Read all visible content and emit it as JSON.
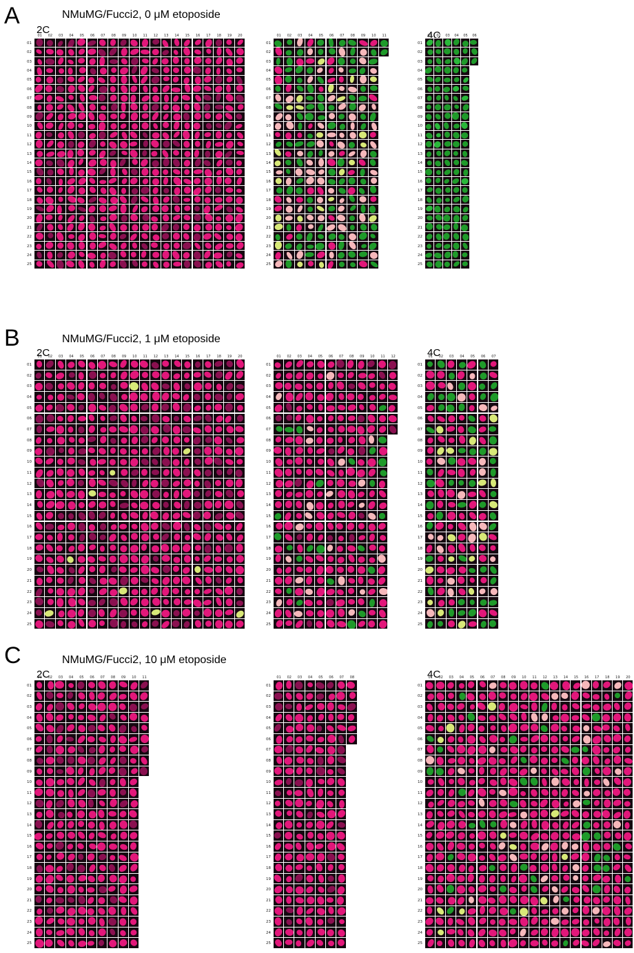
{
  "colors": {
    "G1_magenta": "#e2177a",
    "G1_dim_magenta": "#8a1050",
    "S_G2M_green": "#1f9a2a",
    "transition_pale_pink": "#f6b8bb",
    "yellow_green": "#d8e878",
    "cell_background": "#150810"
  },
  "panels": [
    {
      "letter": "A",
      "title": "NMuMG/Fucci2, 0 μM etoposide",
      "grids": [
        {
          "label": "2C",
          "cols": 20,
          "rows": 25,
          "last_row_len": 20,
          "palette": "magenta"
        },
        {
          "label": "",
          "cols": 11,
          "rows": 25,
          "first_rows": 2,
          "first_cols": 11,
          "rest_cols": 10,
          "palette": "mixed"
        },
        {
          "label": "4C",
          "cols": 6,
          "rows": 25,
          "first_rows": 3,
          "first_cols": 6,
          "rest_cols": 5,
          "palette": "green"
        }
      ]
    },
    {
      "letter": "B",
      "title": "NMuMG/Fucci2, 1 μM etoposide",
      "grids": [
        {
          "label": "2C",
          "cols": 20,
          "rows": 25,
          "palette": "magenta_sparse"
        },
        {
          "label": "",
          "cols": 12,
          "rows": 25,
          "first_rows": 7,
          "first_cols": 12,
          "rest_cols": 11,
          "palette": "magenta_mixed"
        },
        {
          "label": "4C",
          "cols": 7,
          "rows": 25,
          "palette": "mixed_4c"
        }
      ]
    },
    {
      "letter": "C",
      "title": "NMuMG/Fucci2, 10 μM etoposide",
      "grids": [
        {
          "label": "2C",
          "cols": 11,
          "rows": 25,
          "first_rows": 9,
          "first_cols": 11,
          "rest_cols": 10,
          "palette": "magenta"
        },
        {
          "label": "",
          "cols": 8,
          "rows": 25,
          "first_rows": 6,
          "first_cols": 8,
          "rest_cols": 7,
          "palette": "magenta"
        },
        {
          "label": "4C",
          "cols": 20,
          "rows": 25,
          "palette": "magenta_4c"
        }
      ]
    }
  ]
}
